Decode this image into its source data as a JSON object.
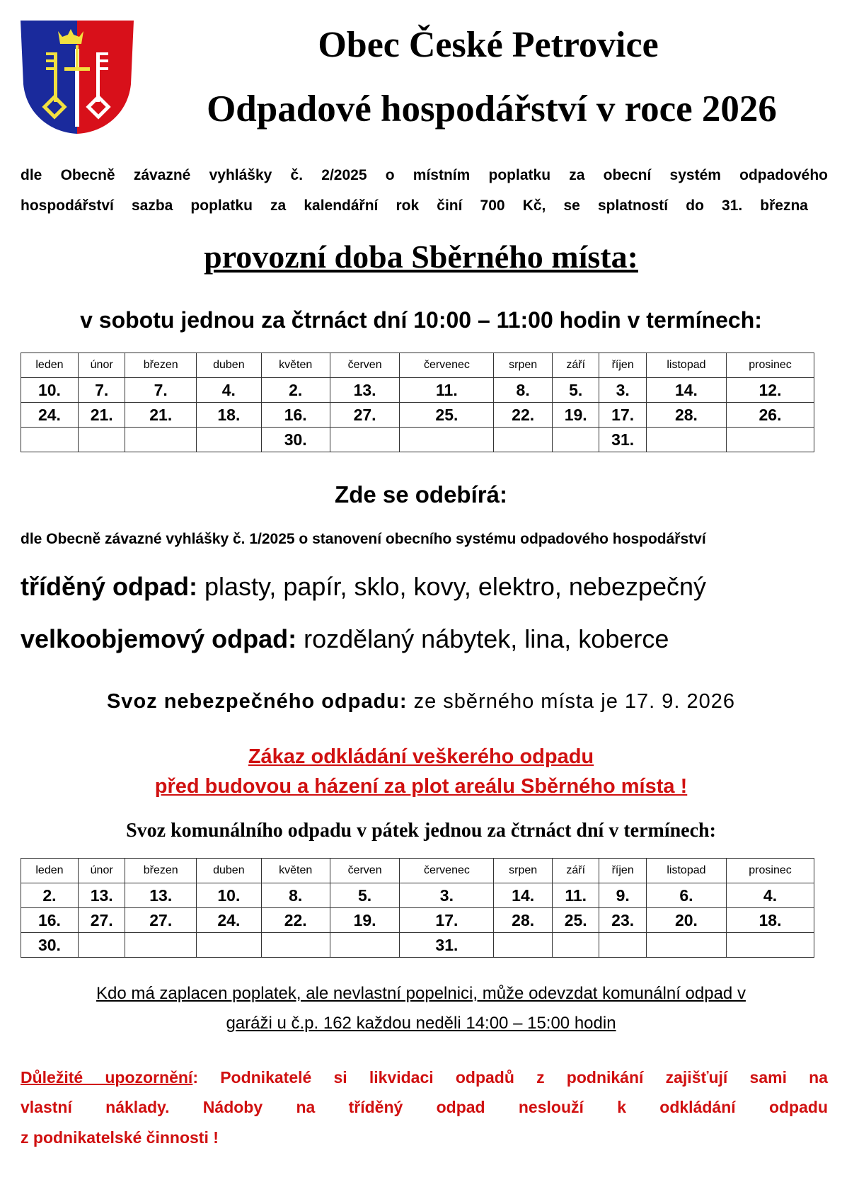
{
  "header": {
    "title": "Obec České Petrovice",
    "subtitle": "Odpadové hospodářství v roce 2026",
    "crest": "coat-of-arms"
  },
  "intro": {
    "line1": "dle Obecně závazné vyhlášky č. 2/2025 o místním poplatku za obecní systém odpadového",
    "line2": "hospodářství sazba poplatku za kalendářní rok činí 700 Kč, se splatností do 31. března"
  },
  "collection_point": {
    "heading": "provozní doba Sběrného místa:",
    "schedule": "v sobotu jednou za čtrnáct dní 10:00 – 11:00 hodin v termínech:"
  },
  "months": [
    "leden",
    "únor",
    "březen",
    "duben",
    "květen",
    "červen",
    "červenec",
    "srpen",
    "září",
    "říjen",
    "listopad",
    "prosinec"
  ],
  "saturday_dates": [
    [
      "10.",
      "7.",
      "7.",
      "4.",
      "2.",
      "13.",
      "11.",
      "8.",
      "5.",
      "3.",
      "14.",
      "12."
    ],
    [
      "24.",
      "21.",
      "21.",
      "18.",
      "16.",
      "27.",
      "25.",
      "22.",
      "19.",
      "17.",
      "28.",
      "26."
    ],
    [
      "",
      "",
      "",
      "",
      "30.",
      "",
      "",
      "",
      "",
      "31.",
      "",
      ""
    ]
  ],
  "accepted": {
    "heading": "Zde se odebírá:",
    "regulation": "dle Obecně závazné vyhlášky č. 1/2025 o stanovení obecního systému odpadového hospodářství",
    "sorted_label": "tříděný odpad:",
    "sorted_items": " plasty, papír, sklo, kovy, elektro, nebezpečný",
    "bulky_label": "velkoobjemový odpad:",
    "bulky_items": " rozdělaný nábytek, lina, koberce"
  },
  "hazardous": {
    "label": "Svoz nebezpečného odpadu:",
    "text": " ze sběrného místa je 17. 9. 2026"
  },
  "warning": {
    "line1": "Zákaz odkládání veškerého odpadu",
    "line2": "před budovou a házení za plot areálu Sběrného místa !"
  },
  "municipal": {
    "heading": "Svoz komunálního odpadu v pátek jednou za čtrnáct dní v termínech:"
  },
  "friday_dates": [
    [
      "2.",
      "13.",
      "13.",
      "10.",
      "8.",
      "5.",
      "3.",
      "14.",
      "11.",
      "9.",
      "6.",
      "4."
    ],
    [
      "16.",
      "27.",
      "27.",
      "24.",
      "22.",
      "19.",
      "17.",
      "28.",
      "25.",
      "23.",
      "20.",
      "18."
    ],
    [
      "30.",
      "",
      "",
      "",
      "",
      "",
      "31.",
      "",
      "",
      "",
      "",
      ""
    ]
  ],
  "garage": {
    "line1": "Kdo má zaplacen poplatek, ale nevlastní popelnici, může odevzdat komunální odpad v",
    "line2": "garáži u č.p. 162 každou neděli 14:00 – 15:00 hodin"
  },
  "notice": {
    "label": "Důležité upozornění",
    "line1": ": Podnikatelé si likvidaci odpadů z podnikání zajišťují sami na",
    "line2": "vlastní náklady. Nádoby na tříděný odpad neslouží k odkládání odpadu",
    "line3": "z podnikatelské činnosti !"
  },
  "colors": {
    "red": "#d01010",
    "blue": "#1a2a9c",
    "crest_red": "#d8101a",
    "gold": "#f2e040"
  }
}
